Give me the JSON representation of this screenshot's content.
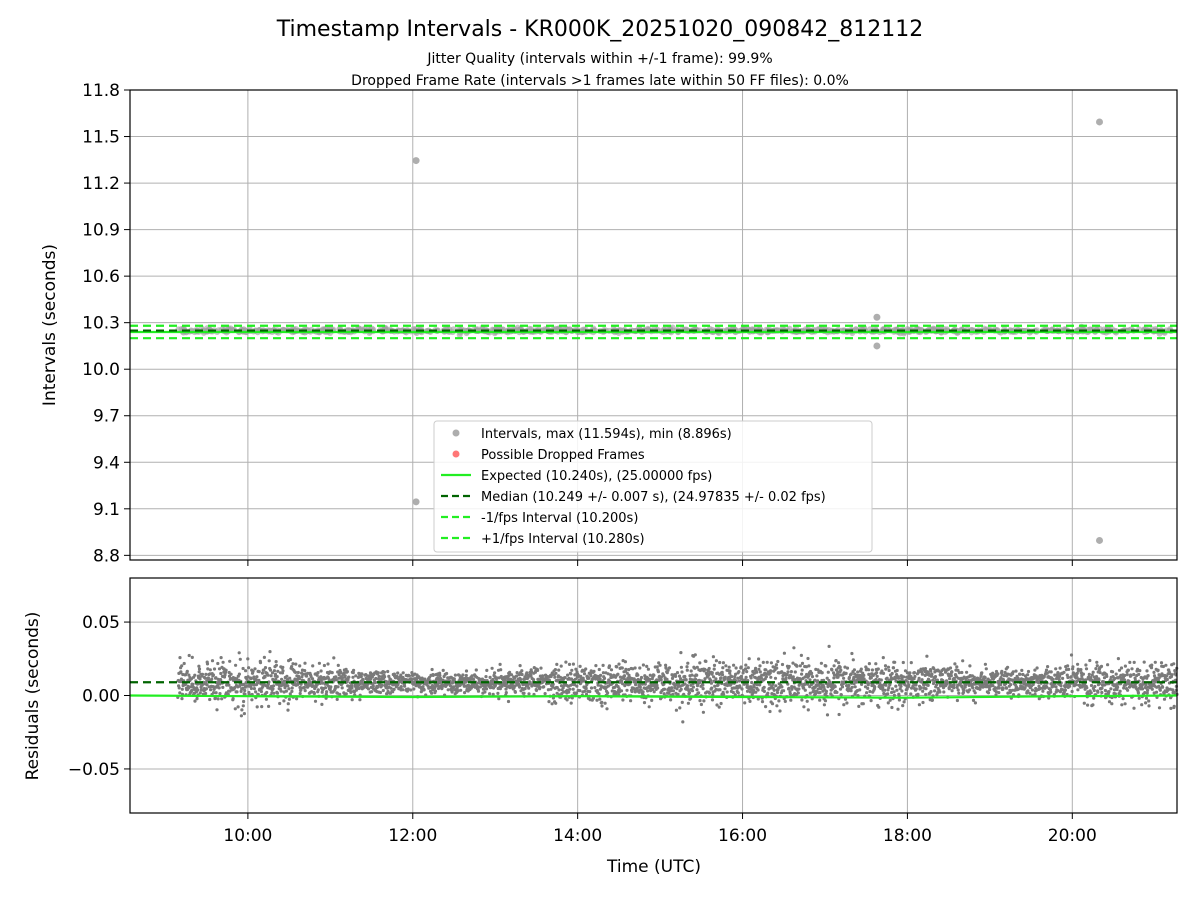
{
  "chart_data": {
    "type": "scatter",
    "title": "Timestamp Intervals - KR000K_20251020_090842_812112",
    "subtitle_jitter": "Jitter Quality (intervals within +/-1 frame): 99.9%",
    "subtitle_dropped": "Dropped Frame Rate (intervals >1 frames late within 50 FF files): 0.0%",
    "xlabel": "Time (UTC)",
    "x_range_hours": [
      8.57,
      21.27
    ],
    "x_ticks": [
      {
        "value": 10,
        "label": "10:00"
      },
      {
        "value": 12,
        "label": "12:00"
      },
      {
        "value": 14,
        "label": "14:00"
      },
      {
        "value": 16,
        "label": "16:00"
      },
      {
        "value": 18,
        "label": "18:00"
      },
      {
        "value": 20,
        "label": "20:00"
      }
    ],
    "data_start_hour": 9.15,
    "data_end_hour": 21.27,
    "top_panel": {
      "ylabel": "Intervals (seconds)",
      "ylim": [
        8.77,
        11.8
      ],
      "y_ticks": [
        {
          "value": 8.8,
          "label": "8.8"
        },
        {
          "value": 9.1,
          "label": "9.1"
        },
        {
          "value": 9.4,
          "label": "9.4"
        },
        {
          "value": 9.7,
          "label": "9.7"
        },
        {
          "value": 10.0,
          "label": "10.0"
        },
        {
          "value": 10.3,
          "label": "10.3"
        },
        {
          "value": 10.6,
          "label": "10.6"
        },
        {
          "value": 10.9,
          "label": "10.9"
        },
        {
          "value": 11.2,
          "label": "11.2"
        },
        {
          "value": 11.5,
          "label": "11.5"
        },
        {
          "value": 11.8,
          "label": "11.8"
        }
      ],
      "expected": 10.24,
      "median": 10.249,
      "minus_interval": 10.2,
      "plus_interval": 10.28,
      "outliers": [
        {
          "x": 12.04,
          "y": 11.345
        },
        {
          "x": 12.04,
          "y": 9.145
        },
        {
          "x": 17.63,
          "y": 10.335
        },
        {
          "x": 17.63,
          "y": 10.15
        },
        {
          "x": 20.33,
          "y": 11.594
        },
        {
          "x": 20.33,
          "y": 8.896
        }
      ],
      "legend": [
        {
          "label": "Intervals, max (11.594s), min (8.896s)",
          "kind": "marker",
          "color": "#999999"
        },
        {
          "label": "Possible Dropped Frames",
          "kind": "marker",
          "color": "#ff5555"
        },
        {
          "label": "Expected (10.240s), (25.00000 fps)",
          "kind": "solid",
          "color": "#22ee22"
        },
        {
          "label": "Median (10.249 +/- 0.007 s), (24.97835 +/- 0.02 fps)",
          "kind": "dashed",
          "color": "#006400"
        },
        {
          "label": "-1/fps Interval (10.200s)",
          "kind": "dashed",
          "color": "#22ee22"
        },
        {
          "label": "+1/fps Interval (10.280s)",
          "kind": "dashed",
          "color": "#22ee22"
        }
      ]
    },
    "bottom_panel": {
      "ylabel": "Residuals (seconds)",
      "ylim": [
        -0.08,
        0.08
      ],
      "y_ticks": [
        {
          "value": -0.05,
          "label": "−0.05"
        },
        {
          "value": 0.0,
          "label": "0.00"
        },
        {
          "value": 0.05,
          "label": "0.05"
        }
      ],
      "median_residual": 0.009,
      "expected_residual_curve": [
        {
          "x": 8.57,
          "y": 0.0
        },
        {
          "x": 10.0,
          "y": -0.0005
        },
        {
          "x": 12.0,
          "y": -0.001
        },
        {
          "x": 14.0,
          "y": -0.0005
        },
        {
          "x": 16.0,
          "y": -0.001
        },
        {
          "x": 18.0,
          "y": -0.0015
        },
        {
          "x": 20.0,
          "y": -0.0005
        },
        {
          "x": 21.27,
          "y": 0.0
        }
      ],
      "residual_spread_by_hour": [
        {
          "x": 9.15,
          "sd": 0.0075
        },
        {
          "x": 10.0,
          "sd": 0.008
        },
        {
          "x": 11.0,
          "sd": 0.005
        },
        {
          "x": 12.0,
          "sd": 0.0035
        },
        {
          "x": 13.0,
          "sd": 0.004
        },
        {
          "x": 14.0,
          "sd": 0.006
        },
        {
          "x": 15.0,
          "sd": 0.0075
        },
        {
          "x": 16.0,
          "sd": 0.0075
        },
        {
          "x": 17.0,
          "sd": 0.0075
        },
        {
          "x": 18.0,
          "sd": 0.007
        },
        {
          "x": 19.0,
          "sd": 0.004
        },
        {
          "x": 20.0,
          "sd": 0.006
        },
        {
          "x": 21.27,
          "sd": 0.007
        }
      ],
      "point_count": 3600
    },
    "colors": {
      "points": "#7a7a7a",
      "outlier_points": "#a0a0a0",
      "expected_line": "#22ee22",
      "median_line": "#006400",
      "bound_lines": "#22ee22",
      "grid": "#b0b0b0"
    }
  }
}
